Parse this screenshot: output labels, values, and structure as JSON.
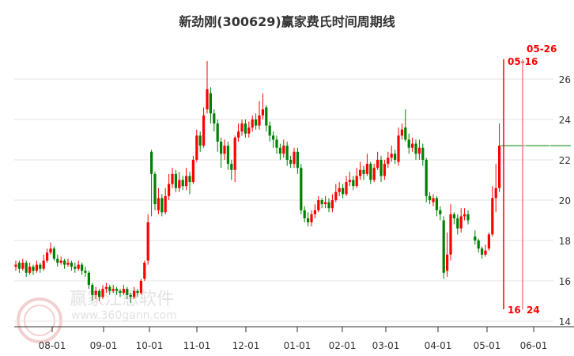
{
  "chart_data": {
    "type": "candlestick",
    "title": "新劲刚(300629)赢家费氏时间周期线",
    "xlabel": "",
    "ylabel": "",
    "ylim": [
      14,
      26
    ],
    "yticks": [
      "14",
      "16",
      "18",
      "20",
      "22",
      "24",
      "26"
    ],
    "xticks": [
      "08-01",
      "09-01",
      "10-01",
      "11-01",
      "12-01",
      "01-01",
      "02-01",
      "03-01",
      "04-01",
      "05-01",
      "06-01"
    ],
    "grid": true,
    "up_color": "#ff0000",
    "down_color": "#008000",
    "candles_ohlc_note": "[open, close, high, low]",
    "candles": [
      [
        16.7,
        16.8,
        17.0,
        16.5
      ],
      [
        16.9,
        16.6,
        17.0,
        16.4
      ],
      [
        16.6,
        16.9,
        17.1,
        16.5
      ],
      [
        16.9,
        16.4,
        17.0,
        16.2
      ],
      [
        16.4,
        16.7,
        16.9,
        16.3
      ],
      [
        16.7,
        16.5,
        16.8,
        16.3
      ],
      [
        16.5,
        16.8,
        17.0,
        16.4
      ],
      [
        16.8,
        16.6,
        16.9,
        16.4
      ],
      [
        16.6,
        17.0,
        17.3,
        16.5
      ],
      [
        17.0,
        17.4,
        17.6,
        16.9
      ],
      [
        17.4,
        17.6,
        17.9,
        17.3
      ],
      [
        17.6,
        17.1,
        17.7,
        17.0
      ],
      [
        17.1,
        16.9,
        17.3,
        16.7
      ],
      [
        16.9,
        17.0,
        17.2,
        16.8
      ],
      [
        17.0,
        16.8,
        17.1,
        16.6
      ],
      [
        16.8,
        16.9,
        17.1,
        16.7
      ],
      [
        16.9,
        16.7,
        17.0,
        16.5
      ],
      [
        16.7,
        16.6,
        16.9,
        16.4
      ],
      [
        16.6,
        16.8,
        17.0,
        16.5
      ],
      [
        16.8,
        16.5,
        16.9,
        16.3
      ],
      [
        16.5,
        16.4,
        16.7,
        16.2
      ],
      [
        16.4,
        15.8,
        16.5,
        15.6
      ],
      [
        15.8,
        15.3,
        15.9,
        15.0
      ],
      [
        15.3,
        15.5,
        15.7,
        15.1
      ],
      [
        15.5,
        15.2,
        15.6,
        15.0
      ],
      [
        15.2,
        15.6,
        15.8,
        15.1
      ],
      [
        15.6,
        15.7,
        15.9,
        15.4
      ],
      [
        15.7,
        15.5,
        15.8,
        15.3
      ],
      [
        15.5,
        15.6,
        15.8,
        15.4
      ],
      [
        15.6,
        15.5,
        15.7,
        15.3
      ],
      [
        15.5,
        15.4,
        15.6,
        15.2
      ],
      [
        15.4,
        15.6,
        15.8,
        15.3
      ],
      [
        15.6,
        15.3,
        15.7,
        15.1
      ],
      [
        15.3,
        15.2,
        15.4,
        14.9
      ],
      [
        15.2,
        15.5,
        15.7,
        15.1
      ],
      [
        15.5,
        15.4,
        15.6,
        15.2
      ],
      [
        15.4,
        16.0,
        16.1,
        15.3
      ],
      [
        16.1,
        16.9,
        17.0,
        16.0
      ],
      [
        17.0,
        18.9,
        19.3,
        16.8
      ],
      [
        22.4,
        21.3,
        22.5,
        19.2
      ],
      [
        21.3,
        19.8,
        21.4,
        19.5
      ],
      [
        19.5,
        20.1,
        20.6,
        19.3
      ],
      [
        20.1,
        19.4,
        20.3,
        19.2
      ],
      [
        19.4,
        20.2,
        20.6,
        19.3
      ],
      [
        20.2,
        20.8,
        21.3,
        20.0
      ],
      [
        20.8,
        21.3,
        21.6,
        20.6
      ],
      [
        21.3,
        20.6,
        21.5,
        20.4
      ],
      [
        20.6,
        21.0,
        21.4,
        20.4
      ],
      [
        21.0,
        20.7,
        21.2,
        20.5
      ],
      [
        20.7,
        21.2,
        21.6,
        20.5
      ],
      [
        21.2,
        20.9,
        21.4,
        20.3
      ],
      [
        20.9,
        22.0,
        22.2,
        20.8
      ],
      [
        22.0,
        23.2,
        23.5,
        21.9
      ],
      [
        23.2,
        22.7,
        23.4,
        22.4
      ],
      [
        22.7,
        24.2,
        24.6,
        22.6
      ],
      [
        24.5,
        25.5,
        26.9,
        24.3
      ],
      [
        25.3,
        24.3,
        25.6,
        23.8
      ],
      [
        24.3,
        23.8,
        24.5,
        23.4
      ],
      [
        23.8,
        22.9,
        24.0,
        22.4
      ],
      [
        22.9,
        22.3,
        23.1,
        21.6
      ],
      [
        22.3,
        22.7,
        23.0,
        22.0
      ],
      [
        22.7,
        21.8,
        22.9,
        21.5
      ],
      [
        21.8,
        21.5,
        22.0,
        21.0
      ],
      [
        21.5,
        23.1,
        23.2,
        20.9
      ],
      [
        23.1,
        23.4,
        23.8,
        22.9
      ],
      [
        23.4,
        23.8,
        24.0,
        23.2
      ],
      [
        23.8,
        23.3,
        24.0,
        23.1
      ],
      [
        23.3,
        23.6,
        23.9,
        23.1
      ],
      [
        23.6,
        24.0,
        24.2,
        23.4
      ],
      [
        24.0,
        23.7,
        24.3,
        23.5
      ],
      [
        23.7,
        24.2,
        24.9,
        23.5
      ],
      [
        24.2,
        24.5,
        25.3,
        24.0
      ],
      [
        24.6,
        23.7,
        24.7,
        23.4
      ],
      [
        23.7,
        23.2,
        23.9,
        22.9
      ],
      [
        23.2,
        23.0,
        23.4,
        22.6
      ],
      [
        23.0,
        22.6,
        23.2,
        22.3
      ],
      [
        22.6,
        22.3,
        22.8,
        22.0
      ],
      [
        22.3,
        22.7,
        23.0,
        22.1
      ],
      [
        22.7,
        22.0,
        22.9,
        21.7
      ],
      [
        22.0,
        21.8,
        22.2,
        21.6
      ],
      [
        21.8,
        22.4,
        22.6,
        21.6
      ],
      [
        22.4,
        21.6,
        22.6,
        21.3
      ],
      [
        21.6,
        19.5,
        21.8,
        19.3
      ],
      [
        19.5,
        19.1,
        19.7,
        18.9
      ],
      [
        19.1,
        18.9,
        19.4,
        18.7
      ],
      [
        18.9,
        19.3,
        19.5,
        18.7
      ],
      [
        19.3,
        19.5,
        19.8,
        19.1
      ],
      [
        19.5,
        20.0,
        20.2,
        19.4
      ],
      [
        20.0,
        19.8,
        20.1,
        19.6
      ],
      [
        19.8,
        19.9,
        20.2,
        19.6
      ],
      [
        19.9,
        19.6,
        20.1,
        19.4
      ],
      [
        19.6,
        20.0,
        20.3,
        19.4
      ],
      [
        20.0,
        20.4,
        20.8,
        19.9
      ],
      [
        20.4,
        20.6,
        20.9,
        20.2
      ],
      [
        20.6,
        20.3,
        20.8,
        20.1
      ],
      [
        20.3,
        20.9,
        21.2,
        20.2
      ],
      [
        20.9,
        21.0,
        21.4,
        20.7
      ],
      [
        21.0,
        20.7,
        21.2,
        20.5
      ],
      [
        20.7,
        21.2,
        21.6,
        20.6
      ],
      [
        21.2,
        21.5,
        21.9,
        21.0
      ],
      [
        21.5,
        21.3,
        21.7,
        21.0
      ],
      [
        21.3,
        21.8,
        22.3,
        21.2
      ],
      [
        21.8,
        21.0,
        21.9,
        20.8
      ],
      [
        21.0,
        21.6,
        21.8,
        20.9
      ],
      [
        21.6,
        22.0,
        22.4,
        21.5
      ],
      [
        22.0,
        21.2,
        22.2,
        20.9
      ],
      [
        21.2,
        21.8,
        22.0,
        21.0
      ],
      [
        21.8,
        22.1,
        22.4,
        21.6
      ],
      [
        22.1,
        22.3,
        22.7,
        21.9
      ],
      [
        22.3,
        22.0,
        22.5,
        21.8
      ],
      [
        21.9,
        23.2,
        23.6,
        21.7
      ],
      [
        23.2,
        23.5,
        23.8,
        23.0
      ],
      [
        23.6,
        23.0,
        24.5,
        22.9
      ],
      [
        23.0,
        22.6,
        23.3,
        22.3
      ],
      [
        22.6,
        22.8,
        23.1,
        22.4
      ],
      [
        22.8,
        22.3,
        23.0,
        22.0
      ],
      [
        22.3,
        22.6,
        23.0,
        22.0
      ],
      [
        22.6,
        22.0,
        22.8,
        21.7
      ],
      [
        22.0,
        20.2,
        22.1,
        19.9
      ],
      [
        20.2,
        20.0,
        20.4,
        19.8
      ],
      [
        19.9,
        20.1,
        20.3,
        19.7
      ],
      [
        20.1,
        19.5,
        20.2,
        19.2
      ],
      [
        19.5,
        19.3,
        19.7,
        19.0
      ],
      [
        19.0,
        16.4,
        19.2,
        16.1
      ],
      [
        16.5,
        17.3,
        18.4,
        16.2
      ],
      [
        17.3,
        19.3,
        19.8,
        17.0
      ],
      [
        19.3,
        19.1,
        19.4,
        18.8
      ],
      [
        19.1,
        18.6,
        19.3,
        18.3
      ],
      [
        18.6,
        19.2,
        19.6,
        18.4
      ],
      [
        19.2,
        19.3,
        19.6,
        19.0
      ],
      [
        19.3,
        19.0,
        19.5,
        18.8
      ],
      null,
      [
        18.2,
        18.0,
        18.5,
        17.8
      ],
      [
        18.0,
        17.6,
        18.1,
        17.4
      ],
      [
        17.6,
        17.3,
        17.7,
        17.1
      ],
      [
        17.3,
        17.5,
        17.8,
        17.2
      ],
      [
        17.6,
        18.3,
        18.4,
        17.5
      ],
      [
        18.3,
        20.1,
        20.7,
        18.2
      ],
      [
        20.1,
        20.6,
        21.8,
        19.4
      ],
      [
        20.6,
        22.7,
        23.8,
        20.4
      ]
    ],
    "last_close_line": {
      "value": 22.7,
      "color": "#008000"
    },
    "cycle_lines": [
      {
        "date_label": "05-16",
        "count_label": "16",
        "color": "#ff0000"
      },
      {
        "date_label": "05-26",
        "count_label": "24",
        "color": "#f08080"
      }
    ]
  },
  "watermark": {
    "text": "赢家江恩软件",
    "url": "www.360gann.com",
    "logo_chars": [
      "江",
      "赢",
      "恩",
      "家"
    ]
  }
}
